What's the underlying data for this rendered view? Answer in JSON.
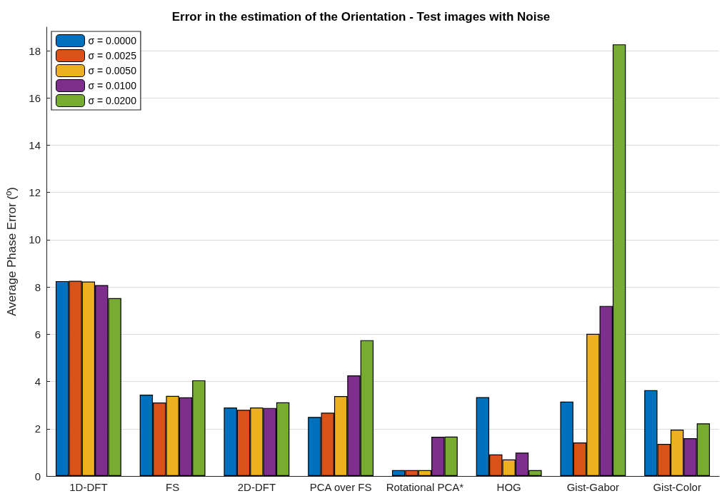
{
  "chart_data": {
    "type": "bar",
    "title": "Error in the estimation of the Orientation - Test images with Noise",
    "ylabel": "Average Phase Error (º)",
    "categories": [
      "1D-DFT",
      "FS",
      "2D-DFT",
      "PCA over FS",
      "Rotational PCA*",
      "HOG",
      "Gist-Gabor",
      "Gist-Color"
    ],
    "series": [
      {
        "name": "σ = 0.0000",
        "color": "#0072bd",
        "values": [
          8.25,
          3.44,
          2.9,
          2.5,
          0.25,
          3.34,
          3.15,
          3.63
        ]
      },
      {
        "name": "σ = 0.0025",
        "color": "#d95319",
        "values": [
          8.26,
          3.11,
          2.8,
          2.68,
          0.25,
          0.91,
          1.42,
          1.36
        ]
      },
      {
        "name": "σ = 0.0050",
        "color": "#edb120",
        "values": [
          8.23,
          3.39,
          2.9,
          3.38,
          0.25,
          0.7,
          6.02,
          1.96
        ]
      },
      {
        "name": "σ = 0.0100",
        "color": "#7e2f8e",
        "values": [
          8.08,
          3.33,
          2.88,
          4.26,
          1.66,
          0.99,
          7.2,
          1.6
        ]
      },
      {
        "name": "σ = 0.0200",
        "color": "#77ac30",
        "values": [
          7.53,
          4.05,
          3.12,
          5.75,
          1.67,
          0.25,
          18.27,
          2.23
        ]
      }
    ],
    "ylim": [
      0,
      19
    ],
    "yticks": [
      0,
      2,
      4,
      6,
      8,
      10,
      12,
      14,
      16,
      18
    ],
    "grid": "y",
    "legend": "top left"
  }
}
